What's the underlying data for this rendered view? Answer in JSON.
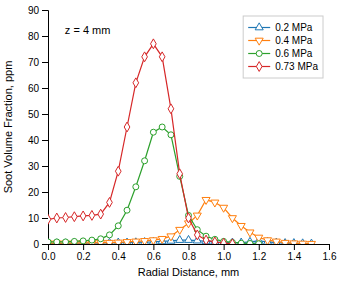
{
  "chart_data": {
    "type": "line",
    "annotation": "z = 4 mm",
    "x_label": "Radial Distance, mm",
    "y_label": "Soot Volume Fraction, ppm",
    "xlim": [
      0.0,
      1.6
    ],
    "ylim": [
      0,
      90
    ],
    "xticks": [
      {
        "value": 0.0,
        "label": "0.0"
      },
      0.2,
      0.4,
      0.6,
      0.8,
      {
        "value": 1.0,
        "label": "1.0"
      },
      1.2,
      1.4,
      1.6
    ],
    "yticks": [
      0,
      10,
      20,
      30,
      40,
      50,
      60,
      70,
      80,
      90
    ],
    "grid": false,
    "legend": "upper right",
    "series": [
      {
        "name": "0.2 MPa",
        "marker": "triangle-up",
        "x": [
          0.0,
          0.05,
          0.1,
          0.15,
          0.2,
          0.25,
          0.3,
          0.35,
          0.4,
          0.45,
          0.5,
          0.55,
          0.6,
          0.65,
          0.7,
          0.75,
          0.8,
          0.85,
          0.9,
          0.95,
          1.0,
          1.05,
          1.1,
          1.15,
          1.2,
          1.25,
          1.3,
          1.35,
          1.4,
          1.45,
          1.5
        ],
        "values": [
          0.2,
          0.2,
          0.2,
          0.3,
          0.3,
          0.3,
          0.4,
          0.4,
          0.5,
          0.5,
          0.6,
          0.7,
          0.8,
          1.0,
          1.2,
          1.5,
          1.5,
          1.3,
          1.0,
          0.8,
          0.5,
          0.5,
          0.5,
          0.8,
          1.2,
          0.8,
          0.5,
          0.3,
          0.3,
          0.2,
          0.1
        ]
      },
      {
        "name": "0.4 MPa",
        "marker": "triangle-down",
        "x": [
          0.0,
          0.05,
          0.1,
          0.15,
          0.2,
          0.25,
          0.3,
          0.35,
          0.4,
          0.45,
          0.5,
          0.55,
          0.6,
          0.65,
          0.7,
          0.75,
          0.8,
          0.85,
          0.9,
          0.95,
          1.0,
          1.05,
          1.1,
          1.15,
          1.2,
          1.25,
          1.3,
          1.35,
          1.4,
          1.45,
          1.5
        ],
        "values": [
          0.3,
          0.3,
          0.3,
          0.3,
          0.4,
          0.4,
          0.5,
          0.5,
          0.6,
          0.8,
          1.0,
          1.2,
          1.5,
          2.0,
          3.0,
          5.5,
          8.0,
          11.0,
          17.0,
          16.0,
          14.0,
          10.0,
          7.0,
          4.5,
          2.5,
          1.5,
          1.0,
          0.5,
          0.3,
          0.2,
          0.1
        ]
      },
      {
        "name": "0.6 MPa",
        "marker": "circle",
        "x": [
          0.0,
          0.05,
          0.1,
          0.15,
          0.2,
          0.25,
          0.3,
          0.35,
          0.4,
          0.45,
          0.5,
          0.55,
          0.6,
          0.65,
          0.7,
          0.75,
          0.8,
          0.85,
          0.9,
          0.95,
          1.0,
          1.05,
          1.1,
          1.15,
          1.2
        ],
        "values": [
          0.8,
          0.8,
          0.8,
          1.0,
          1.2,
          1.5,
          2.0,
          3.5,
          7.0,
          13.0,
          22.0,
          32.0,
          43.0,
          45.0,
          42.0,
          26.0,
          11.0,
          5.5,
          3.0,
          1.8,
          1.0,
          0.6,
          0.3,
          0.2,
          0.1
        ]
      },
      {
        "name": "0.73 MPa",
        "marker": "diamond",
        "x": [
          0.0,
          0.05,
          0.1,
          0.15,
          0.2,
          0.25,
          0.3,
          0.35,
          0.4,
          0.45,
          0.5,
          0.55,
          0.6,
          0.65,
          0.7,
          0.75,
          0.8,
          0.85,
          0.9,
          0.95,
          1.0,
          1.05
        ],
        "values": [
          9.5,
          10.0,
          10.2,
          10.5,
          10.8,
          11.0,
          11.5,
          16.0,
          28.0,
          45.0,
          62.0,
          72.0,
          77.0,
          72.0,
          52.0,
          27.0,
          10.0,
          3.5,
          1.5,
          0.8,
          0.3,
          0.1
        ]
      }
    ]
  }
}
